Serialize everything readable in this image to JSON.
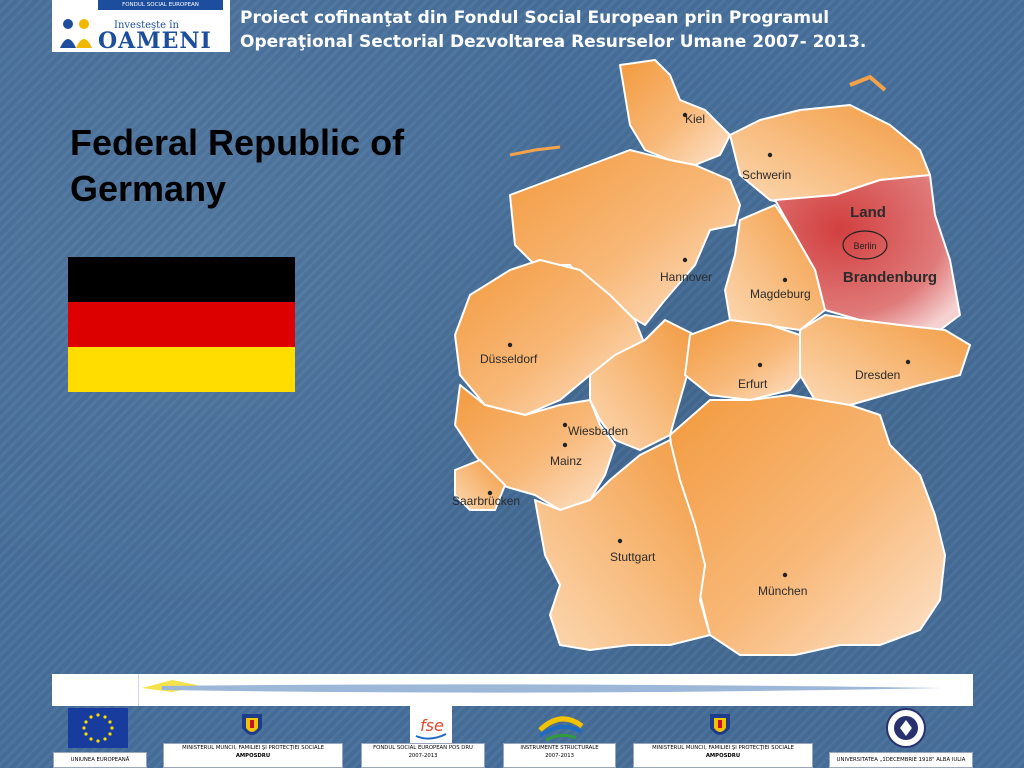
{
  "header": {
    "logo_top_text": "FONDUL SOCIAL EUROPEAN",
    "logo_small_text": "Investeşte în",
    "logo_big_text": "OAMENI",
    "line1": "Proiect cofinanţat din Fondul Social European prin Programul",
    "line2": "Operaţional Sectorial Dezvoltarea Resurselor Umane 2007- 2013."
  },
  "slide": {
    "title_line1": "Federal Republic of",
    "title_line2": "Germany"
  },
  "flag": {
    "stripes": [
      "#000000",
      "#dd0000",
      "#ffdd00"
    ]
  },
  "map": {
    "highlight_region_line1": "Land",
    "highlight_region_line2": "Brandenburg",
    "capital_small": "Berlin",
    "cities": [
      {
        "name": "Kiel"
      },
      {
        "name": "Schwerin"
      },
      {
        "name": "Hannover"
      },
      {
        "name": "Magdeburg"
      },
      {
        "name": "Düsseldorf"
      },
      {
        "name": "Erfurt"
      },
      {
        "name": "Dresden"
      },
      {
        "name": "Wiesbaden"
      },
      {
        "name": "Mainz"
      },
      {
        "name": "Saarbrücken"
      },
      {
        "name": "Stuttgart"
      },
      {
        "name": "München"
      }
    ],
    "colors": {
      "land": "#f6a24a",
      "land_light": "#fde6cf",
      "highlight": "#d64b4b",
      "border": "#ffffff"
    }
  },
  "footer": {
    "logos": [
      {
        "label": "UNIUNEA  EUROPEANĂ",
        "emblem": "eu-flag"
      },
      {
        "label": "MINISTERUL MUNCII, FAMILIEI ŞI PROTECŢIEI SOCIALE",
        "sub": "AMPOSDRU",
        "emblem": "romanian-coat-of-arms"
      },
      {
        "label": "FONDUL SOCIAL EUROPEAN POS DRU",
        "sub": "2007-2013",
        "emblem": "fse-logo"
      },
      {
        "label": "INSTRUMENTE STRUCTURALE",
        "sub": "2007-2013",
        "emblem": "structural-instruments-logo"
      },
      {
        "label": "MINISTERUL MUNCII, FAMILIEI ŞI PROTECŢIEI SOCIALE",
        "sub": "AMPOSDRU",
        "emblem": "romanian-coat-of-arms"
      },
      {
        "label": "UNIVERSITATEA „1DECEMBRIE 1918\"  ALBA IULIA",
        "emblem": "university-seal"
      }
    ]
  }
}
